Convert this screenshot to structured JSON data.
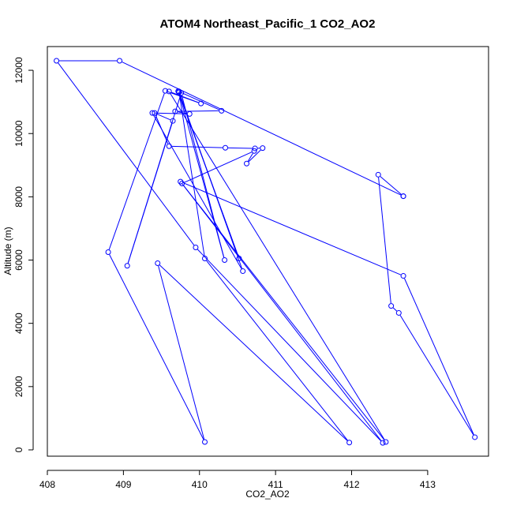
{
  "chart_data": {
    "type": "line",
    "title": "ATOM4 Northeast_Pacific_1 CO2_AO2",
    "xlabel": "CO2_AO2",
    "ylabel": "Altitude (m)",
    "xlim": [
      408,
      413.8
    ],
    "ylim": [
      -200,
      12750
    ],
    "xticks": [
      408,
      409,
      410,
      411,
      412,
      413
    ],
    "yticks": [
      0,
      2000,
      4000,
      6000,
      8000,
      10000,
      12000
    ],
    "series": [
      {
        "color": "#0000ff",
        "marker": "open-circle",
        "points": [
          [
            412.68,
            8020
          ],
          [
            412.35,
            8700
          ],
          [
            412.52,
            4550
          ],
          [
            412.62,
            4330
          ],
          [
            413.62,
            400
          ],
          [
            412.68,
            5500
          ],
          [
            409.75,
            8480
          ],
          [
            412.45,
            250
          ],
          [
            409.6,
            11330
          ],
          [
            410.02,
            10950
          ],
          [
            409.55,
            11350
          ],
          [
            408.8,
            6250
          ],
          [
            410.07,
            250
          ],
          [
            409.45,
            5900
          ],
          [
            411.97,
            230
          ],
          [
            410.07,
            6050
          ],
          [
            409.73,
            11330
          ],
          [
            410.57,
            5650
          ],
          [
            409.38,
            10650
          ],
          [
            409.87,
            10620
          ],
          [
            409.68,
            10700
          ],
          [
            410.29,
            10720
          ],
          [
            409.72,
            11340
          ],
          [
            410.52,
            6050
          ],
          [
            409.73,
            11300
          ],
          [
            410.33,
            6000
          ],
          [
            409.76,
            11280
          ],
          [
            409.05,
            5820
          ],
          [
            409.65,
            10400
          ],
          [
            409.41,
            10650
          ],
          [
            409.6,
            9600
          ],
          [
            410.34,
            9550
          ],
          [
            410.73,
            9530
          ],
          [
            410.83,
            9540
          ],
          [
            410.62,
            9050
          ],
          [
            410.72,
            9450
          ],
          [
            409.77,
            8420
          ],
          [
            412.41,
            220
          ],
          [
            409.95,
            6400
          ],
          [
            408.12,
            12300
          ],
          [
            408.95,
            12300
          ],
          [
            412.68,
            8020
          ]
        ]
      }
    ]
  }
}
